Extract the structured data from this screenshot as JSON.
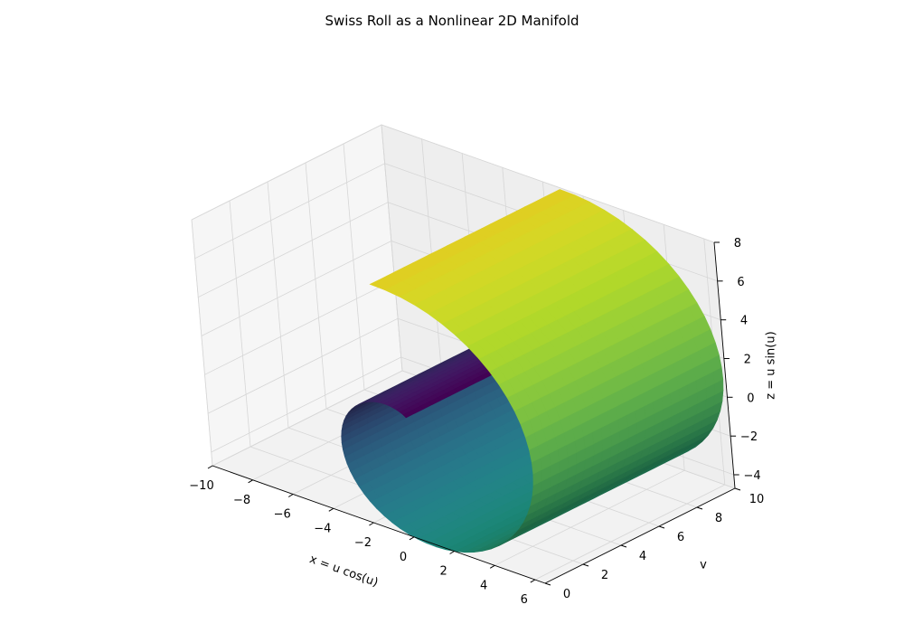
{
  "chart_data": {
    "type": "surface3d",
    "title": "Swiss Roll as a Nonlinear 2D Manifold",
    "xlabel": "x = u cos(u)",
    "ylabel": "v",
    "zlabel": "z = u sin(u)",
    "xlim": [
      -10,
      6.5
    ],
    "ylim": [
      0,
      10
    ],
    "zlim": [
      -4.7,
      8
    ],
    "xticks": [
      "−10",
      "−8",
      "−6",
      "−4",
      "−2",
      "0",
      "2",
      "4",
      "6"
    ],
    "yticks": [
      "0",
      "2",
      "4",
      "6",
      "8",
      "10"
    ],
    "zticks": [
      "−4",
      "−2",
      "0",
      "2",
      "4",
      "6",
      "8"
    ],
    "grid": true,
    "colormap": "viridis",
    "surface": {
      "u_range": [
        1.5,
        8.0
      ],
      "v_range": [
        0,
        10
      ],
      "x_of": "u cos(u)",
      "y_of": "v",
      "z_of": "u sin(u)",
      "color_by": "u"
    }
  }
}
